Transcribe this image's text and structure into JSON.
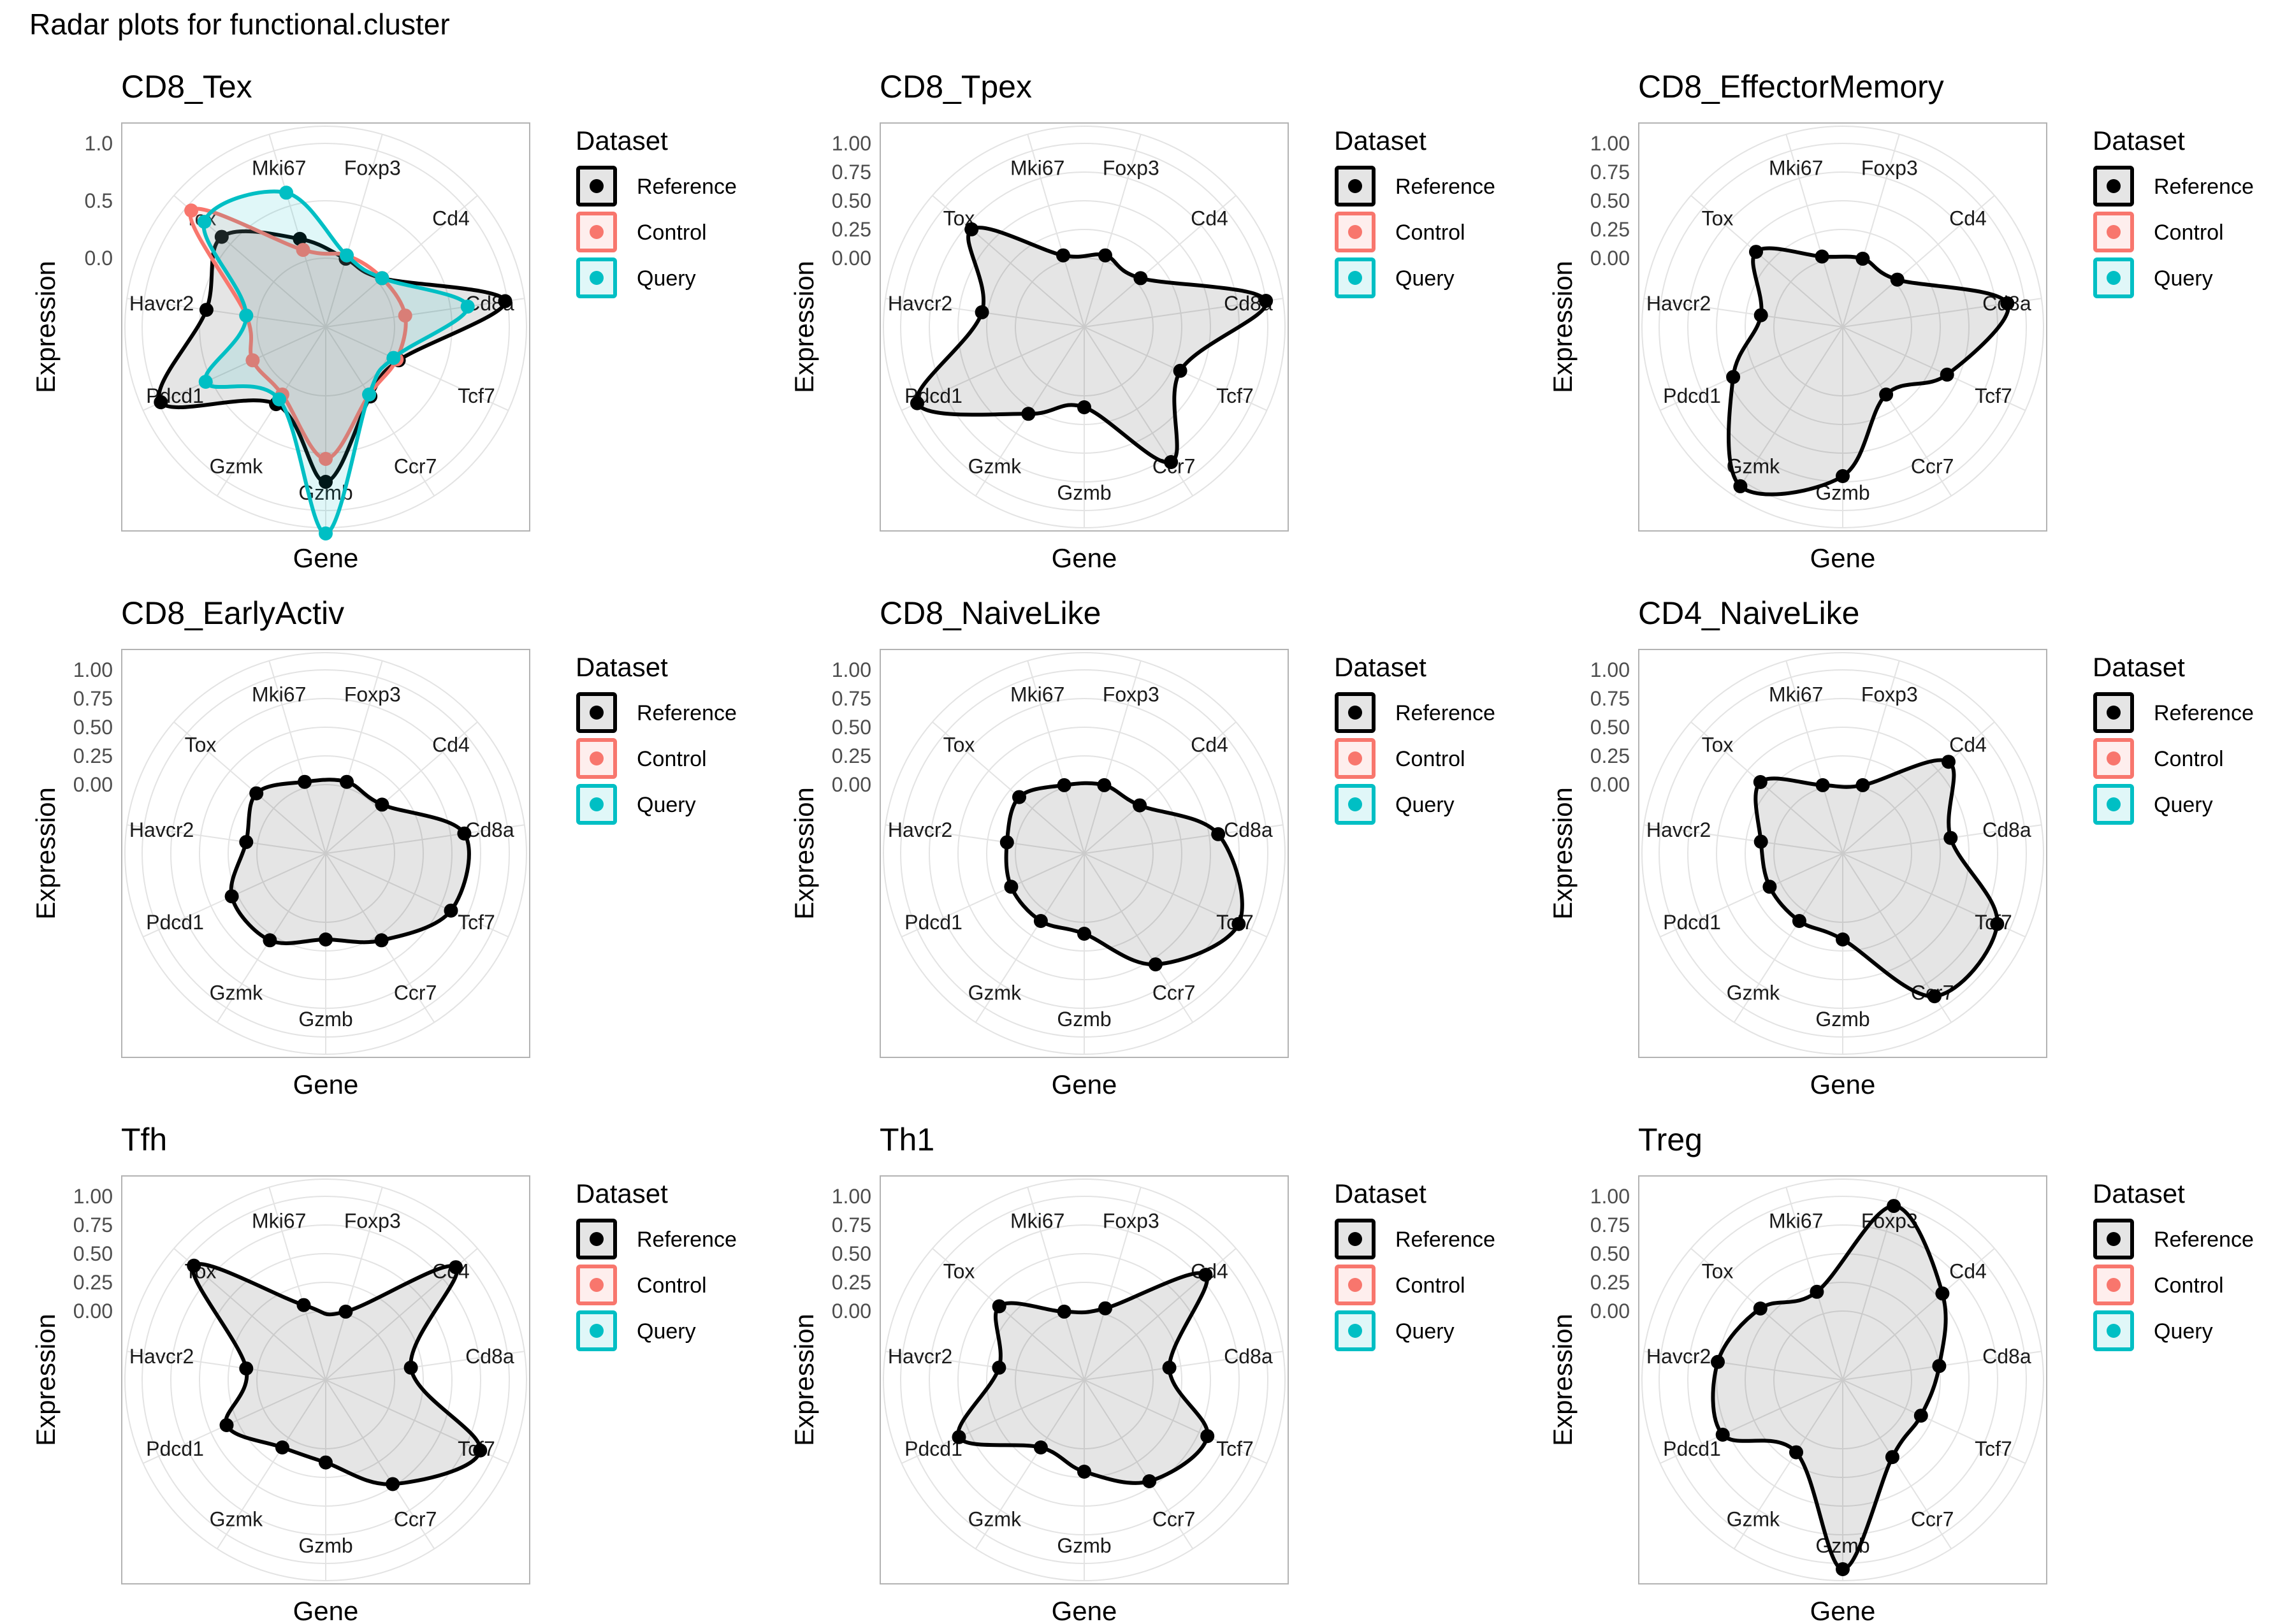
{
  "page_title": "Radar plots for functional.cluster",
  "colors": {
    "Reference": "#000000",
    "Control": "#F8766D",
    "Query": "#00BFC4"
  },
  "chart_data": {
    "type": "radar",
    "xlabel": "Gene",
    "ylabel": "Expression",
    "ylim": [
      -0.6,
      1.15
    ],
    "yticks": [
      "0.00",
      "0.25",
      "0.50",
      "0.75",
      "1.00"
    ],
    "yticks_tex": [
      "0.0",
      "0.5",
      "1.0"
    ],
    "genes": [
      "Foxp3",
      "Cd4",
      "Cd8a",
      "Tcf7",
      "Ccr7",
      "Gzmb",
      "Gzmk",
      "Pdcd1",
      "Havcr2",
      "Tox",
      "Mki67"
    ],
    "legend": {
      "title": "Dataset",
      "entries": [
        "Reference",
        "Control",
        "Query"
      ],
      "position": "right"
    },
    "panels": [
      {
        "title": "CD8_Tex",
        "series": [
          {
            "name": "Reference",
            "values": [
              0.02,
              0.05,
              0.98,
              0.1,
              0.12,
              0.75,
              0.2,
              0.98,
              0.45,
              0.6,
              0.2
            ]
          },
          {
            "name": "Control",
            "values": [
              0.05,
              0.05,
              0.1,
              0.08,
              0.1,
              0.55,
              0.1,
              0.1,
              0.1,
              0.95,
              0.1
            ]
          },
          {
            "name": "Query",
            "values": [
              0.05,
              0.05,
              0.65,
              0.05,
              0.1,
              1.2,
              0.15,
              0.55,
              0.1,
              0.8,
              0.62
            ]
          }
        ]
      },
      {
        "title": "CD8_Tpex",
        "series": [
          {
            "name": "Reference",
            "values": [
              0.05,
              0.05,
              1.0,
              0.32,
              0.8,
              0.1,
              0.3,
              1.0,
              0.3,
              0.7,
              0.05
            ]
          }
        ]
      },
      {
        "title": "CD8_EffectorMemory",
        "series": [
          {
            "name": "Reference",
            "values": [
              0.02,
              0.03,
              0.85,
              0.4,
              0.1,
              0.7,
              1.05,
              0.45,
              0.12,
              0.4,
              0.04
            ]
          }
        ]
      },
      {
        "title": "CD8_EarlyActiv",
        "series": [
          {
            "name": "Reference",
            "values": [
              0.05,
              0.05,
              0.62,
              0.6,
              0.3,
              0.15,
              0.3,
              0.3,
              0.1,
              0.2,
              0.05
            ]
          }
        ]
      },
      {
        "title": "CD8_NaiveLike",
        "series": [
          {
            "name": "Reference",
            "values": [
              0.02,
              0.04,
              0.58,
              0.88,
              0.55,
              0.1,
              0.1,
              0.1,
              0.08,
              0.15,
              0.02
            ]
          }
        ]
      },
      {
        "title": "CD4_NaiveLike",
        "series": [
          {
            "name": "Reference",
            "values": [
              0.02,
              0.62,
              0.35,
              0.88,
              0.88,
              0.15,
              0.1,
              0.1,
              0.12,
              0.35,
              0.02
            ]
          }
        ]
      },
      {
        "title": "Tfh",
        "series": [
          {
            "name": "Reference",
            "values": [
              0.02,
              0.9,
              0.15,
              0.88,
              0.48,
              0.12,
              0.1,
              0.35,
              0.1,
              0.92,
              0.08
            ]
          }
        ]
      },
      {
        "title": "Th1",
        "series": [
          {
            "name": "Reference",
            "values": [
              0.05,
              0.8,
              0.15,
              0.58,
              0.45,
              0.2,
              0.1,
              0.6,
              0.15,
              0.38,
              0.02
            ]
          }
        ]
      },
      {
        "title": "Treg",
        "series": [
          {
            "name": "Reference",
            "values": [
              0.98,
              0.55,
              0.25,
              0.15,
              0.2,
              1.05,
              0.15,
              0.55,
              0.5,
              0.35,
              0.2
            ]
          }
        ]
      }
    ]
  }
}
